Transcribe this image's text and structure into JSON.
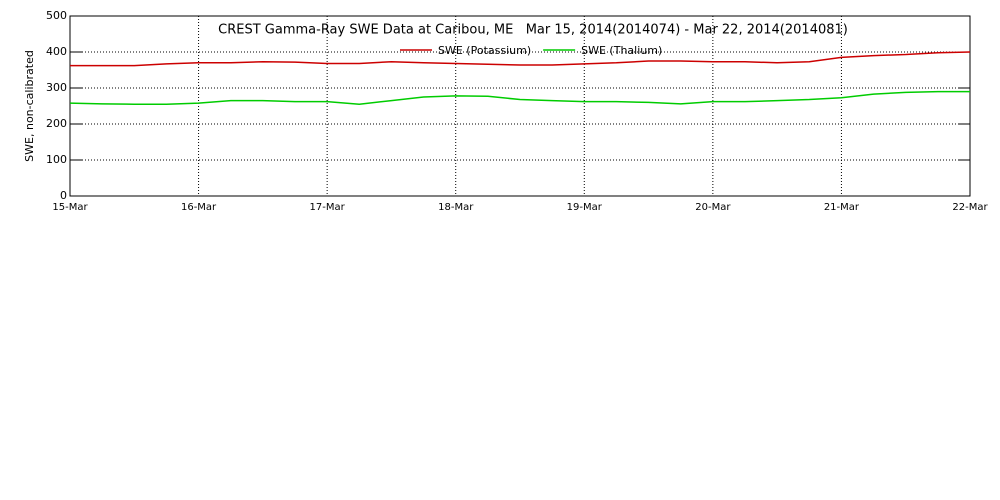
{
  "chart_data": {
    "type": "line",
    "title": "CREST Gamma-Ray SWE Data at Caribou, ME   Mar 15, 2014(2014074) - Mar 22, 2014(2014081)",
    "y_label": "SWE, non-calibrated",
    "x": [
      15,
      15.25,
      15.5,
      15.75,
      16,
      16.25,
      16.5,
      16.75,
      17,
      17.25,
      17.5,
      17.75,
      18,
      18.25,
      18.5,
      18.75,
      19,
      19.25,
      19.5,
      19.75,
      20,
      20.25,
      20.5,
      20.75,
      21,
      21.25,
      21.5,
      21.75,
      22
    ],
    "series": [
      {
        "name": "SWE (Potassium)",
        "color": "#cc0000",
        "values": [
          362,
          362,
          362,
          367,
          370,
          370,
          373,
          372,
          368,
          368,
          373,
          370,
          368,
          366,
          364,
          364,
          367,
          370,
          375,
          375,
          373,
          373,
          370,
          373,
          385,
          390,
          393,
          398,
          400
        ]
      },
      {
        "name": "SWE (Thalium)",
        "color": "#00cc00",
        "values": [
          258,
          256,
          255,
          255,
          258,
          265,
          265,
          262,
          262,
          255,
          265,
          275,
          278,
          277,
          268,
          265,
          262,
          262,
          260,
          256,
          262,
          262,
          265,
          268,
          273,
          283,
          288,
          290,
          290
        ]
      }
    ],
    "xlim": [
      15,
      22
    ],
    "xticks": [
      {
        "value": 15,
        "label": "15-Mar"
      },
      {
        "value": 16,
        "label": "16-Mar"
      },
      {
        "value": 17,
        "label": "17-Mar"
      },
      {
        "value": 18,
        "label": "18-Mar"
      },
      {
        "value": 19,
        "label": "19-Mar"
      },
      {
        "value": 20,
        "label": "20-Mar"
      },
      {
        "value": 21,
        "label": "21-Mar"
      },
      {
        "value": 22,
        "label": "22-Mar"
      }
    ],
    "ylim": [
      0,
      500
    ],
    "yticks": [
      0,
      100,
      200,
      300,
      400,
      500
    ],
    "grid": true,
    "legend": "top"
  }
}
